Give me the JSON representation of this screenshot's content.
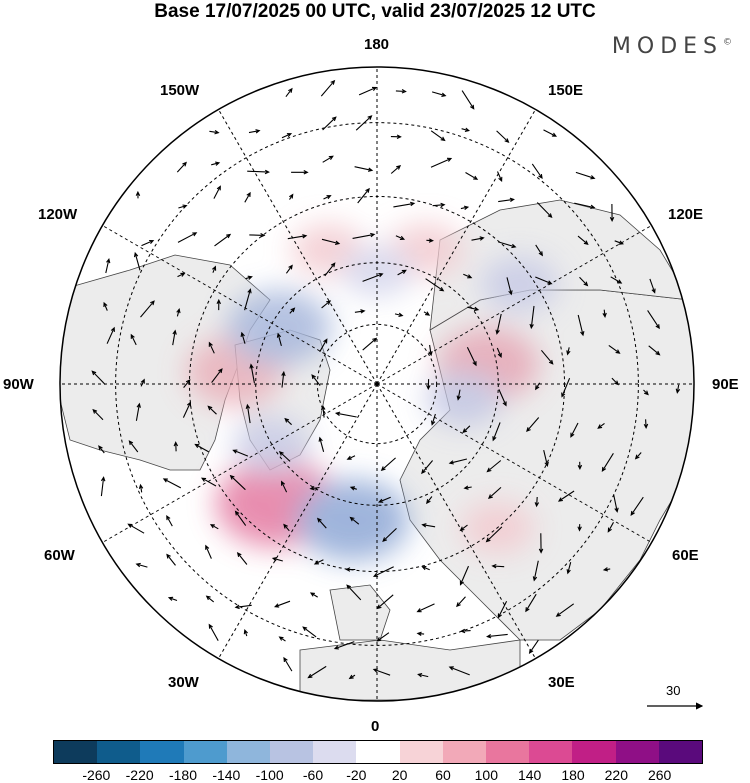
{
  "title": "Base 17/07/2025 00 UTC, valid 23/07/2025 12 UTC",
  "brand": "MODES",
  "brand_mark": "©",
  "longitude_labels": {
    "top": "180",
    "top_left": "150W",
    "top_right": "150E",
    "upper_left": "120W",
    "upper_right": "120E",
    "left": "90W",
    "right": "90E",
    "lower_left": "60W",
    "lower_right": "60E",
    "bottom_left": "30W",
    "bottom_right": "30E",
    "bottom": "0"
  },
  "reference_vector": {
    "label": "30"
  },
  "colorbar": {
    "colors": [
      "#0d3b5c",
      "#0f5c8c",
      "#1f7ab8",
      "#4e9bce",
      "#8fb6dc",
      "#b8c3e2",
      "#dcdcef",
      "#ffffff",
      "#f7d3d7",
      "#f2a9b8",
      "#e9769e",
      "#dc4a93",
      "#c11f86",
      "#8f0f86",
      "#5a0a7c"
    ],
    "tick_labels": [
      "-260",
      "-220",
      "-180",
      "-140",
      "-100",
      "-60",
      "-20",
      "20",
      "60",
      "100",
      "140",
      "180",
      "220",
      "260"
    ]
  },
  "anomaly_blobs": [
    {
      "lon": -95,
      "lat": 55,
      "value": 95,
      "color": "#eab0ba"
    },
    {
      "lon": -120,
      "lat": 62,
      "value": -110,
      "color": "#a7b7dc"
    },
    {
      "lon": -40,
      "lat": 52,
      "value": 150,
      "color": "#e47aa2"
    },
    {
      "lon": -10,
      "lat": 56,
      "value": -130,
      "color": "#8fa8d6"
    },
    {
      "lon": 100,
      "lat": 62,
      "value": 105,
      "color": "#e6a7b6"
    },
    {
      "lon": 80,
      "lat": 68,
      "value": -45,
      "color": "#c2c6e3"
    },
    {
      "lon": 160,
      "lat": 55,
      "value": 45,
      "color": "#f3cbd0"
    },
    {
      "lon": -160,
      "lat": 55,
      "value": 40,
      "color": "#f3cbd0"
    },
    {
      "lon": 40,
      "lat": 45,
      "value": 40,
      "color": "#f3cbd0"
    },
    {
      "lon": -60,
      "lat": 60,
      "value": -50,
      "color": "#c8cbe6"
    },
    {
      "lon": 125,
      "lat": 48,
      "value": -50,
      "color": "#c8cbe6"
    },
    {
      "lon": 180,
      "lat": 62,
      "value": -35,
      "color": "#d4d5ec"
    }
  ]
}
